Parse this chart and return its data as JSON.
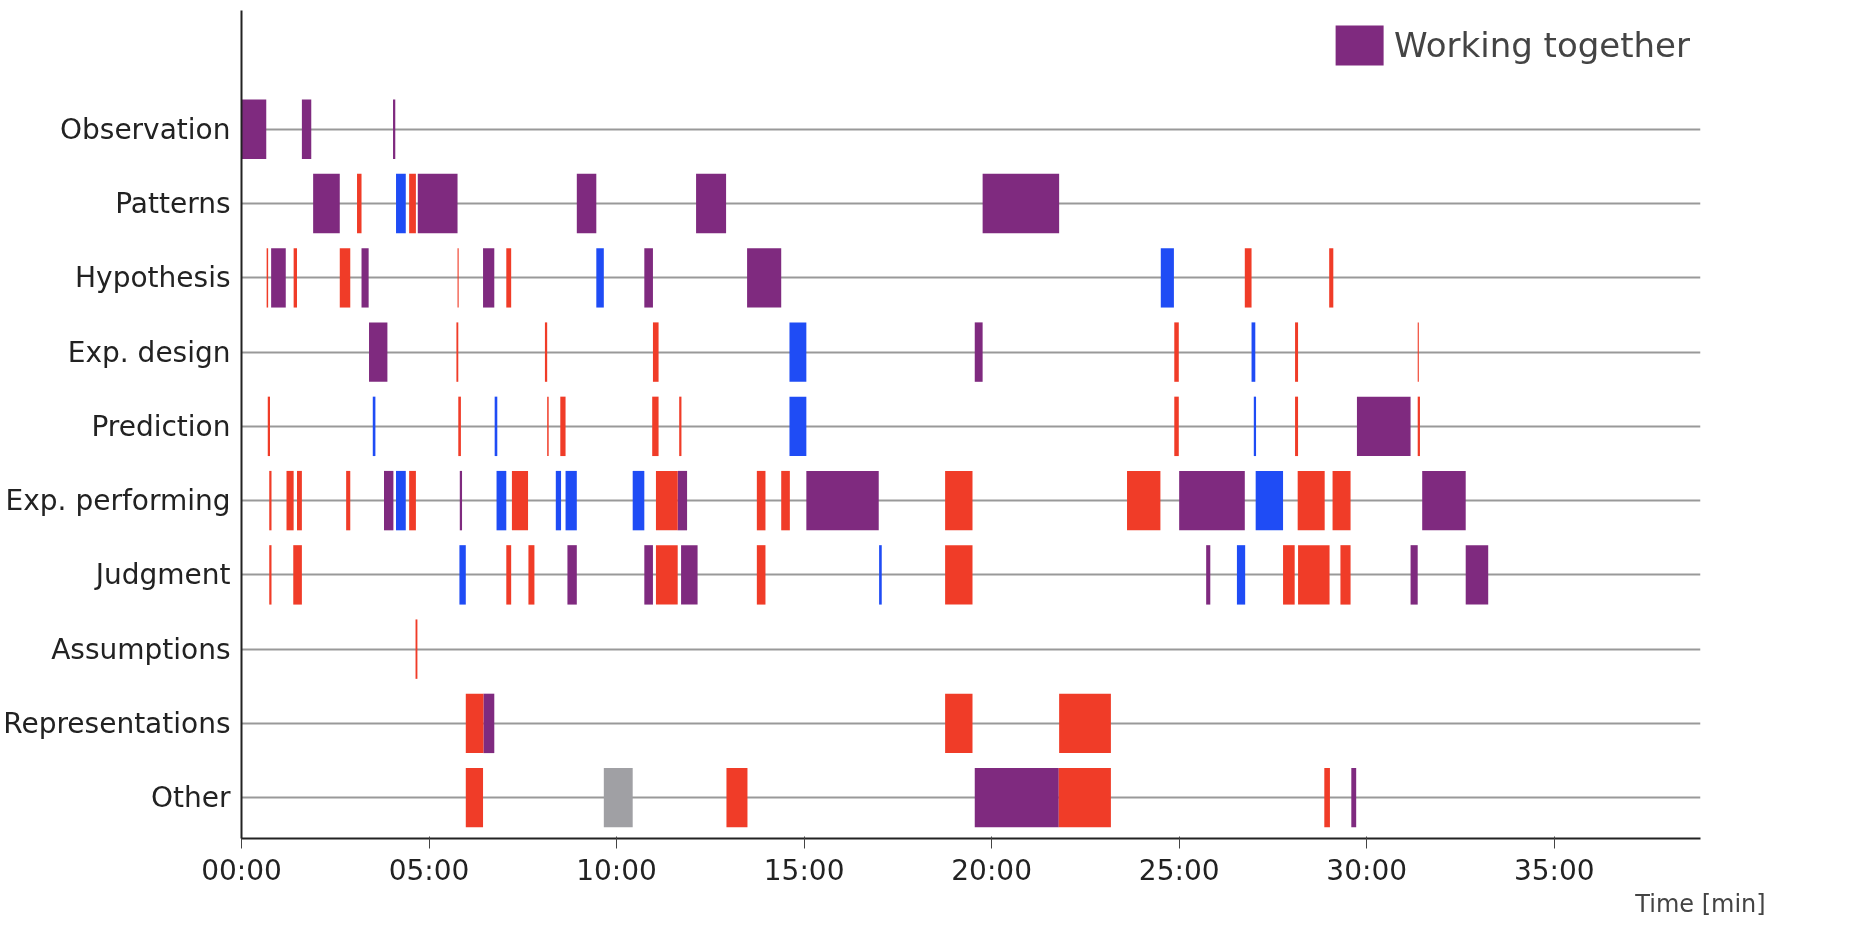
{
  "chart_data": {
    "type": "bar",
    "orientation": "horizontal",
    "xlabel": "Time [min]",
    "categories": [
      "Observation",
      "Patterns",
      "Hypothesis",
      "Exp. design",
      "Prediction",
      "Exp. performing",
      "Judgment",
      "Assumptions",
      "Representations",
      "Other"
    ],
    "xlim": [
      0,
      38.9
    ],
    "xticks": [
      {
        "value": 0,
        "label": "00:00"
      },
      {
        "value": 5,
        "label": "05:00"
      },
      {
        "value": 10,
        "label": "10:00"
      },
      {
        "value": 15,
        "label": "15:00"
      },
      {
        "value": 20,
        "label": "20:00"
      },
      {
        "value": 25,
        "label": "25:00"
      },
      {
        "value": 30,
        "label": "30:00"
      },
      {
        "value": 35,
        "label": "35:00"
      }
    ],
    "grid": "y",
    "legend": "top right",
    "series": [
      {
        "name": "Working together",
        "color": "#7f2a7f",
        "base": [
          0,
          1.91,
          0.79,
          3.4,
          29.74,
          3.8,
          8.69,
          null,
          6.45,
          19.55
        ],
        "values": [
          0.66,
          0.71,
          0.39,
          0.49,
          1.43,
          0.25,
          0.25,
          null,
          0.29,
          2.24
        ]
      },
      {
        "color": "#7f2a7f",
        "base": [
          1.61,
          4.7,
          3.2,
          19.55,
          null,
          5.82,
          10.74,
          null,
          null,
          29.59
        ],
        "values": [
          0.25,
          1.06,
          0.19,
          0.21,
          null,
          0.06,
          0.23,
          null,
          null,
          0.13
        ]
      },
      {
        "color": "#7f2a7f",
        "base": [
          4.04,
          8.94,
          6.44,
          null,
          null,
          11.63,
          11.72,
          null,
          null,
          null
        ],
        "values": [
          0.06,
          0.52,
          0.3,
          null,
          null,
          0.25,
          0.44,
          null,
          null,
          null
        ]
      },
      {
        "color": "#7f2a7f",
        "base": [
          null,
          12.12,
          10.74,
          null,
          null,
          15.06,
          25.72,
          null,
          null,
          null
        ],
        "values": [
          null,
          0.8,
          0.23,
          null,
          null,
          1.93,
          0.11,
          null,
          null,
          null
        ]
      },
      {
        "color": "#7f2a7f",
        "base": [
          null,
          19.76,
          13.48,
          null,
          null,
          25.0,
          31.17,
          null,
          null,
          null
        ],
        "values": [
          null,
          2.04,
          0.91,
          null,
          null,
          1.75,
          0.19,
          null,
          null,
          null
        ]
      },
      {
        "color": "#7f2a7f",
        "base": [
          null,
          null,
          null,
          null,
          null,
          31.48,
          32.64,
          null,
          null,
          null
        ],
        "values": [
          null,
          null,
          null,
          null,
          null,
          1.16,
          0.6,
          null,
          null,
          null
        ]
      },
      {
        "color": "#f03c28",
        "base": [
          null,
          3.08,
          0.67,
          5.73,
          0.7,
          0.74,
          0.74,
          4.64,
          5.98,
          5.98
        ],
        "values": [
          null,
          0.12,
          0.04,
          0.05,
          0.06,
          0.06,
          0.06,
          0.05,
          0.47,
          0.46
        ]
      },
      {
        "color": "#f03c28",
        "base": [
          null,
          4.47,
          1.39,
          8.09,
          5.78,
          1.2,
          1.38,
          null,
          18.76,
          12.93
        ],
        "values": [
          null,
          0.18,
          0.09,
          0.06,
          0.07,
          0.19,
          0.23,
          null,
          0.73,
          0.56
        ]
      },
      {
        "color": "#f03c28",
        "base": [
          null,
          null,
          2.62,
          10.97,
          8.15,
          1.48,
          7.06,
          null,
          21.8,
          21.79
        ],
        "values": [
          null,
          null,
          0.28,
          0.15,
          0.04,
          0.13,
          0.13,
          null,
          1.38,
          1.39
        ]
      },
      {
        "color": "#f03c28",
        "base": [
          null,
          null,
          5.76,
          24.87,
          8.5,
          2.79,
          7.65,
          null,
          null,
          28.87
        ],
        "values": [
          null,
          null,
          0.03,
          0.12,
          0.14,
          0.11,
          0.16,
          null,
          null,
          0.15
        ]
      },
      {
        "color": "#f03c28",
        "base": [
          null,
          null,
          7.06,
          28.09,
          10.95,
          4.47,
          11.05,
          null,
          null,
          null
        ],
        "values": [
          null,
          null,
          0.13,
          0.08,
          0.17,
          0.18,
          0.58,
          null,
          null,
          null
        ]
      },
      {
        "color": "#f03c28",
        "base": [
          null,
          null,
          26.75,
          31.36,
          11.67,
          7.21,
          13.74,
          null,
          null,
          null
        ],
        "values": [
          null,
          null,
          0.18,
          0.03,
          0.06,
          0.43,
          0.23,
          null,
          null,
          null
        ]
      },
      {
        "color": "#f03c28",
        "base": [
          null,
          null,
          29.0,
          null,
          24.87,
          11.05,
          18.76,
          null,
          null,
          null
        ],
        "values": [
          null,
          null,
          0.11,
          null,
          0.12,
          0.58,
          0.73,
          null,
          null,
          null
        ]
      },
      {
        "color": "#f03c28",
        "base": [
          null,
          null,
          null,
          null,
          28.09,
          13.74,
          27.77,
          null,
          null,
          null
        ],
        "values": [
          null,
          null,
          null,
          null,
          0.08,
          0.23,
          0.31,
          null,
          null,
          null
        ]
      },
      {
        "color": "#f03c28",
        "base": [
          null,
          null,
          null,
          null,
          31.36,
          14.39,
          28.17,
          null,
          null,
          null
        ],
        "values": [
          null,
          null,
          null,
          null,
          0.06,
          0.23,
          0.84,
          null,
          null,
          null
        ]
      },
      {
        "color": "#f03c28",
        "base": [
          null,
          null,
          null,
          null,
          null,
          18.76,
          29.3,
          null,
          null,
          null
        ],
        "values": [
          null,
          null,
          null,
          null,
          null,
          0.73,
          0.27,
          null,
          null,
          null
        ]
      },
      {
        "color": "#f03c28",
        "base": [
          null,
          null,
          null,
          null,
          null,
          23.61,
          null,
          null,
          null,
          null
        ],
        "values": [
          null,
          null,
          null,
          null,
          null,
          0.89,
          null,
          null,
          null,
          null
        ]
      },
      {
        "color": "#f03c28",
        "base": [
          null,
          null,
          null,
          null,
          null,
          28.16,
          null,
          null,
          null,
          null
        ],
        "values": [
          null,
          null,
          null,
          null,
          null,
          0.72,
          null,
          null,
          null,
          null
        ]
      },
      {
        "color": "#f03c28",
        "base": [
          null,
          null,
          null,
          null,
          null,
          29.09,
          null,
          null,
          null,
          null
        ],
        "values": [
          null,
          null,
          null,
          null,
          null,
          0.48,
          null,
          null,
          null,
          null
        ]
      },
      {
        "color": "#1f4cf5",
        "base": [
          null,
          4.12,
          9.46,
          14.61,
          3.5,
          4.12,
          5.81,
          null,
          null,
          null
        ],
        "values": [
          null,
          0.26,
          0.2,
          0.45,
          0.07,
          0.26,
          0.17,
          null,
          null,
          null
        ]
      },
      {
        "color": "#1f4cf5",
        "base": [
          null,
          null,
          24.51,
          26.93,
          6.75,
          6.8,
          17.0,
          null,
          null,
          null
        ],
        "values": [
          null,
          null,
          0.35,
          0.1,
          0.07,
          0.26,
          0.07,
          null,
          null,
          null
        ]
      },
      {
        "color": "#1f4cf5",
        "base": [
          null,
          null,
          null,
          null,
          14.61,
          8.38,
          26.54,
          null,
          null,
          null
        ],
        "values": [
          null,
          null,
          null,
          null,
          0.45,
          0.14,
          0.22,
          null,
          null,
          null
        ]
      },
      {
        "color": "#1f4cf5",
        "base": [
          null,
          null,
          null,
          null,
          26.99,
          8.64,
          null,
          null,
          null,
          null
        ],
        "values": [
          null,
          null,
          null,
          null,
          0.06,
          0.3,
          null,
          null,
          null,
          null
        ]
      },
      {
        "color": "#1f4cf5",
        "base": [
          null,
          null,
          null,
          null,
          null,
          10.43,
          null,
          null,
          null,
          null
        ],
        "values": [
          null,
          null,
          null,
          null,
          null,
          0.31,
          null,
          null,
          null,
          null
        ]
      },
      {
        "color": "#1f4cf5",
        "base": [
          null,
          null,
          null,
          null,
          null,
          27.04,
          null,
          null,
          null,
          null
        ],
        "values": [
          null,
          null,
          null,
          null,
          null,
          0.73,
          null,
          null,
          null,
          null
        ]
      },
      {
        "color": "#a0a0a4",
        "base": [
          null,
          null,
          null,
          null,
          null,
          null,
          null,
          null,
          null,
          9.66
        ],
        "values": [
          null,
          null,
          null,
          null,
          null,
          null,
          null,
          null,
          null,
          0.77
        ]
      }
    ]
  }
}
